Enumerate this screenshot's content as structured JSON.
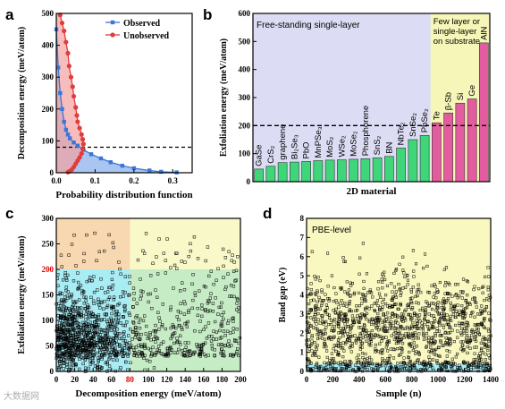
{
  "watermark": "大数据网",
  "chart_data": [
    {
      "panel": "a",
      "type": "line",
      "xlabel": "Probability distribution function",
      "ylabel": "Decomposition energy (meV/atom)",
      "xlim": [
        0,
        0.35
      ],
      "ylim": [
        0,
        500
      ],
      "xticks": [
        0.0,
        0.1,
        0.2,
        0.3
      ],
      "yticks": [
        0,
        100,
        200,
        300,
        400,
        500
      ],
      "threshold_y": 80,
      "legend_position": "top-right",
      "series": [
        {
          "name": "Observed",
          "color": "#3a76d8",
          "marker": "square",
          "points": [
            [
              0.0,
              450
            ],
            [
              0.005,
              330
            ],
            [
              0.01,
              250
            ],
            [
              0.015,
              200
            ],
            [
              0.02,
              160
            ],
            [
              0.025,
              135
            ],
            [
              0.03,
              120
            ],
            [
              0.035,
              108
            ],
            [
              0.045,
              95
            ],
            [
              0.055,
              85
            ],
            [
              0.07,
              72
            ],
            [
              0.09,
              58
            ],
            [
              0.115,
              45
            ],
            [
              0.14,
              33
            ],
            [
              0.17,
              22
            ],
            [
              0.2,
              14
            ],
            [
              0.24,
              7
            ],
            [
              0.27,
              3
            ],
            [
              0.31,
              1
            ]
          ]
        },
        {
          "name": "Unobserved",
          "color": "#e03c3c",
          "marker": "circle",
          "points": [
            [
              0.01,
              495
            ],
            [
              0.015,
              470
            ],
            [
              0.02,
              445
            ],
            [
              0.025,
              410
            ],
            [
              0.03,
              375
            ],
            [
              0.033,
              335
            ],
            [
              0.038,
              300
            ],
            [
              0.042,
              270
            ],
            [
              0.045,
              240
            ],
            [
              0.05,
              205
            ],
            [
              0.053,
              180
            ],
            [
              0.055,
              160
            ],
            [
              0.06,
              140
            ],
            [
              0.065,
              120
            ],
            [
              0.068,
              105
            ],
            [
              0.07,
              90
            ],
            [
              0.068,
              75
            ],
            [
              0.065,
              60
            ],
            [
              0.06,
              48
            ],
            [
              0.055,
              38
            ],
            [
              0.05,
              28
            ],
            [
              0.045,
              18
            ],
            [
              0.04,
              10
            ],
            [
              0.035,
              5
            ],
            [
              0.03,
              2
            ]
          ]
        }
      ]
    },
    {
      "panel": "b",
      "type": "bar",
      "xlabel": "2D material",
      "ylabel": "Exfoliation energy (meV/atom)",
      "ylim": [
        0,
        600
      ],
      "yticks": [
        0,
        100,
        200,
        300,
        400,
        500,
        600
      ],
      "threshold_y": 200,
      "region_labels": [
        "Free-standing single-layer",
        "Few layer or single-layer on substrate"
      ],
      "categories": [
        "GaSe",
        "CrS₂",
        "graphene",
        "Bi₂Se₃",
        "PbO",
        "MnPSe₃",
        "MoS₂",
        "WSe₂",
        "MoSe₂",
        "Phosphorene",
        "SnS₂",
        "BN",
        "NbTe₂",
        "SnSe₂",
        "PbSe₂",
        "Te",
        "β-Sb",
        "Si",
        "Ge",
        "AlN"
      ],
      "values": [
        45,
        55,
        68,
        70,
        72,
        75,
        77,
        78,
        80,
        82,
        85,
        90,
        120,
        150,
        165,
        210,
        245,
        280,
        295,
        495
      ],
      "group": [
        "free",
        "free",
        "free",
        "free",
        "free",
        "free",
        "free",
        "free",
        "free",
        "free",
        "free",
        "free",
        "free",
        "free",
        "free",
        "substrate",
        "substrate",
        "substrate",
        "substrate",
        "substrate"
      ],
      "colors": {
        "free": "#3fd67a",
        "substrate": "#e45ca0",
        "free_bg": "#dcdcf4",
        "substrate_bg": "#f6f6b8"
      }
    },
    {
      "panel": "c",
      "type": "scatter",
      "xlabel_parts": [
        "Decomposition energy (meV/atom)"
      ],
      "xlabel": "Decomposition energy (meV/atom)",
      "ylabel": "Exfoliation energy (meV/atom)",
      "xlim": [
        0,
        200
      ],
      "ylim": [
        0,
        300
      ],
      "xticks": [
        0,
        20,
        40,
        60,
        80,
        100,
        120,
        140,
        160,
        180,
        200
      ],
      "yticks": [
        0,
        50,
        100,
        150,
        200,
        250,
        300
      ],
      "highlight_x": 80,
      "highlight_y": 200,
      "region_colors": {
        "low_low": "#a8ecf4",
        "high_low": "#c6ecc6",
        "low_high": "#f8d8b0",
        "high_high": "#f8f8c8"
      },
      "marker": "open-square",
      "n_points": 1400
    },
    {
      "panel": "d",
      "type": "scatter",
      "xlabel": "Sample (n)",
      "ylabel": "Band gap (eV)",
      "xlim": [
        0,
        1400
      ],
      "ylim": [
        0,
        8
      ],
      "xticks": [
        0,
        200,
        400,
        600,
        800,
        1000,
        1200,
        1400
      ],
      "yticks": [
        0,
        1,
        2,
        3,
        4,
        5,
        6,
        7,
        8
      ],
      "annotation": "PBE-level",
      "band_upper_eV": 0.4,
      "region_colors": {
        "top": "#f8f8c0",
        "bottom": "#a8ecf4"
      },
      "marker": "open-square",
      "n_points": 1400
    }
  ],
  "panel_labels": [
    "a",
    "b",
    "c",
    "d"
  ]
}
